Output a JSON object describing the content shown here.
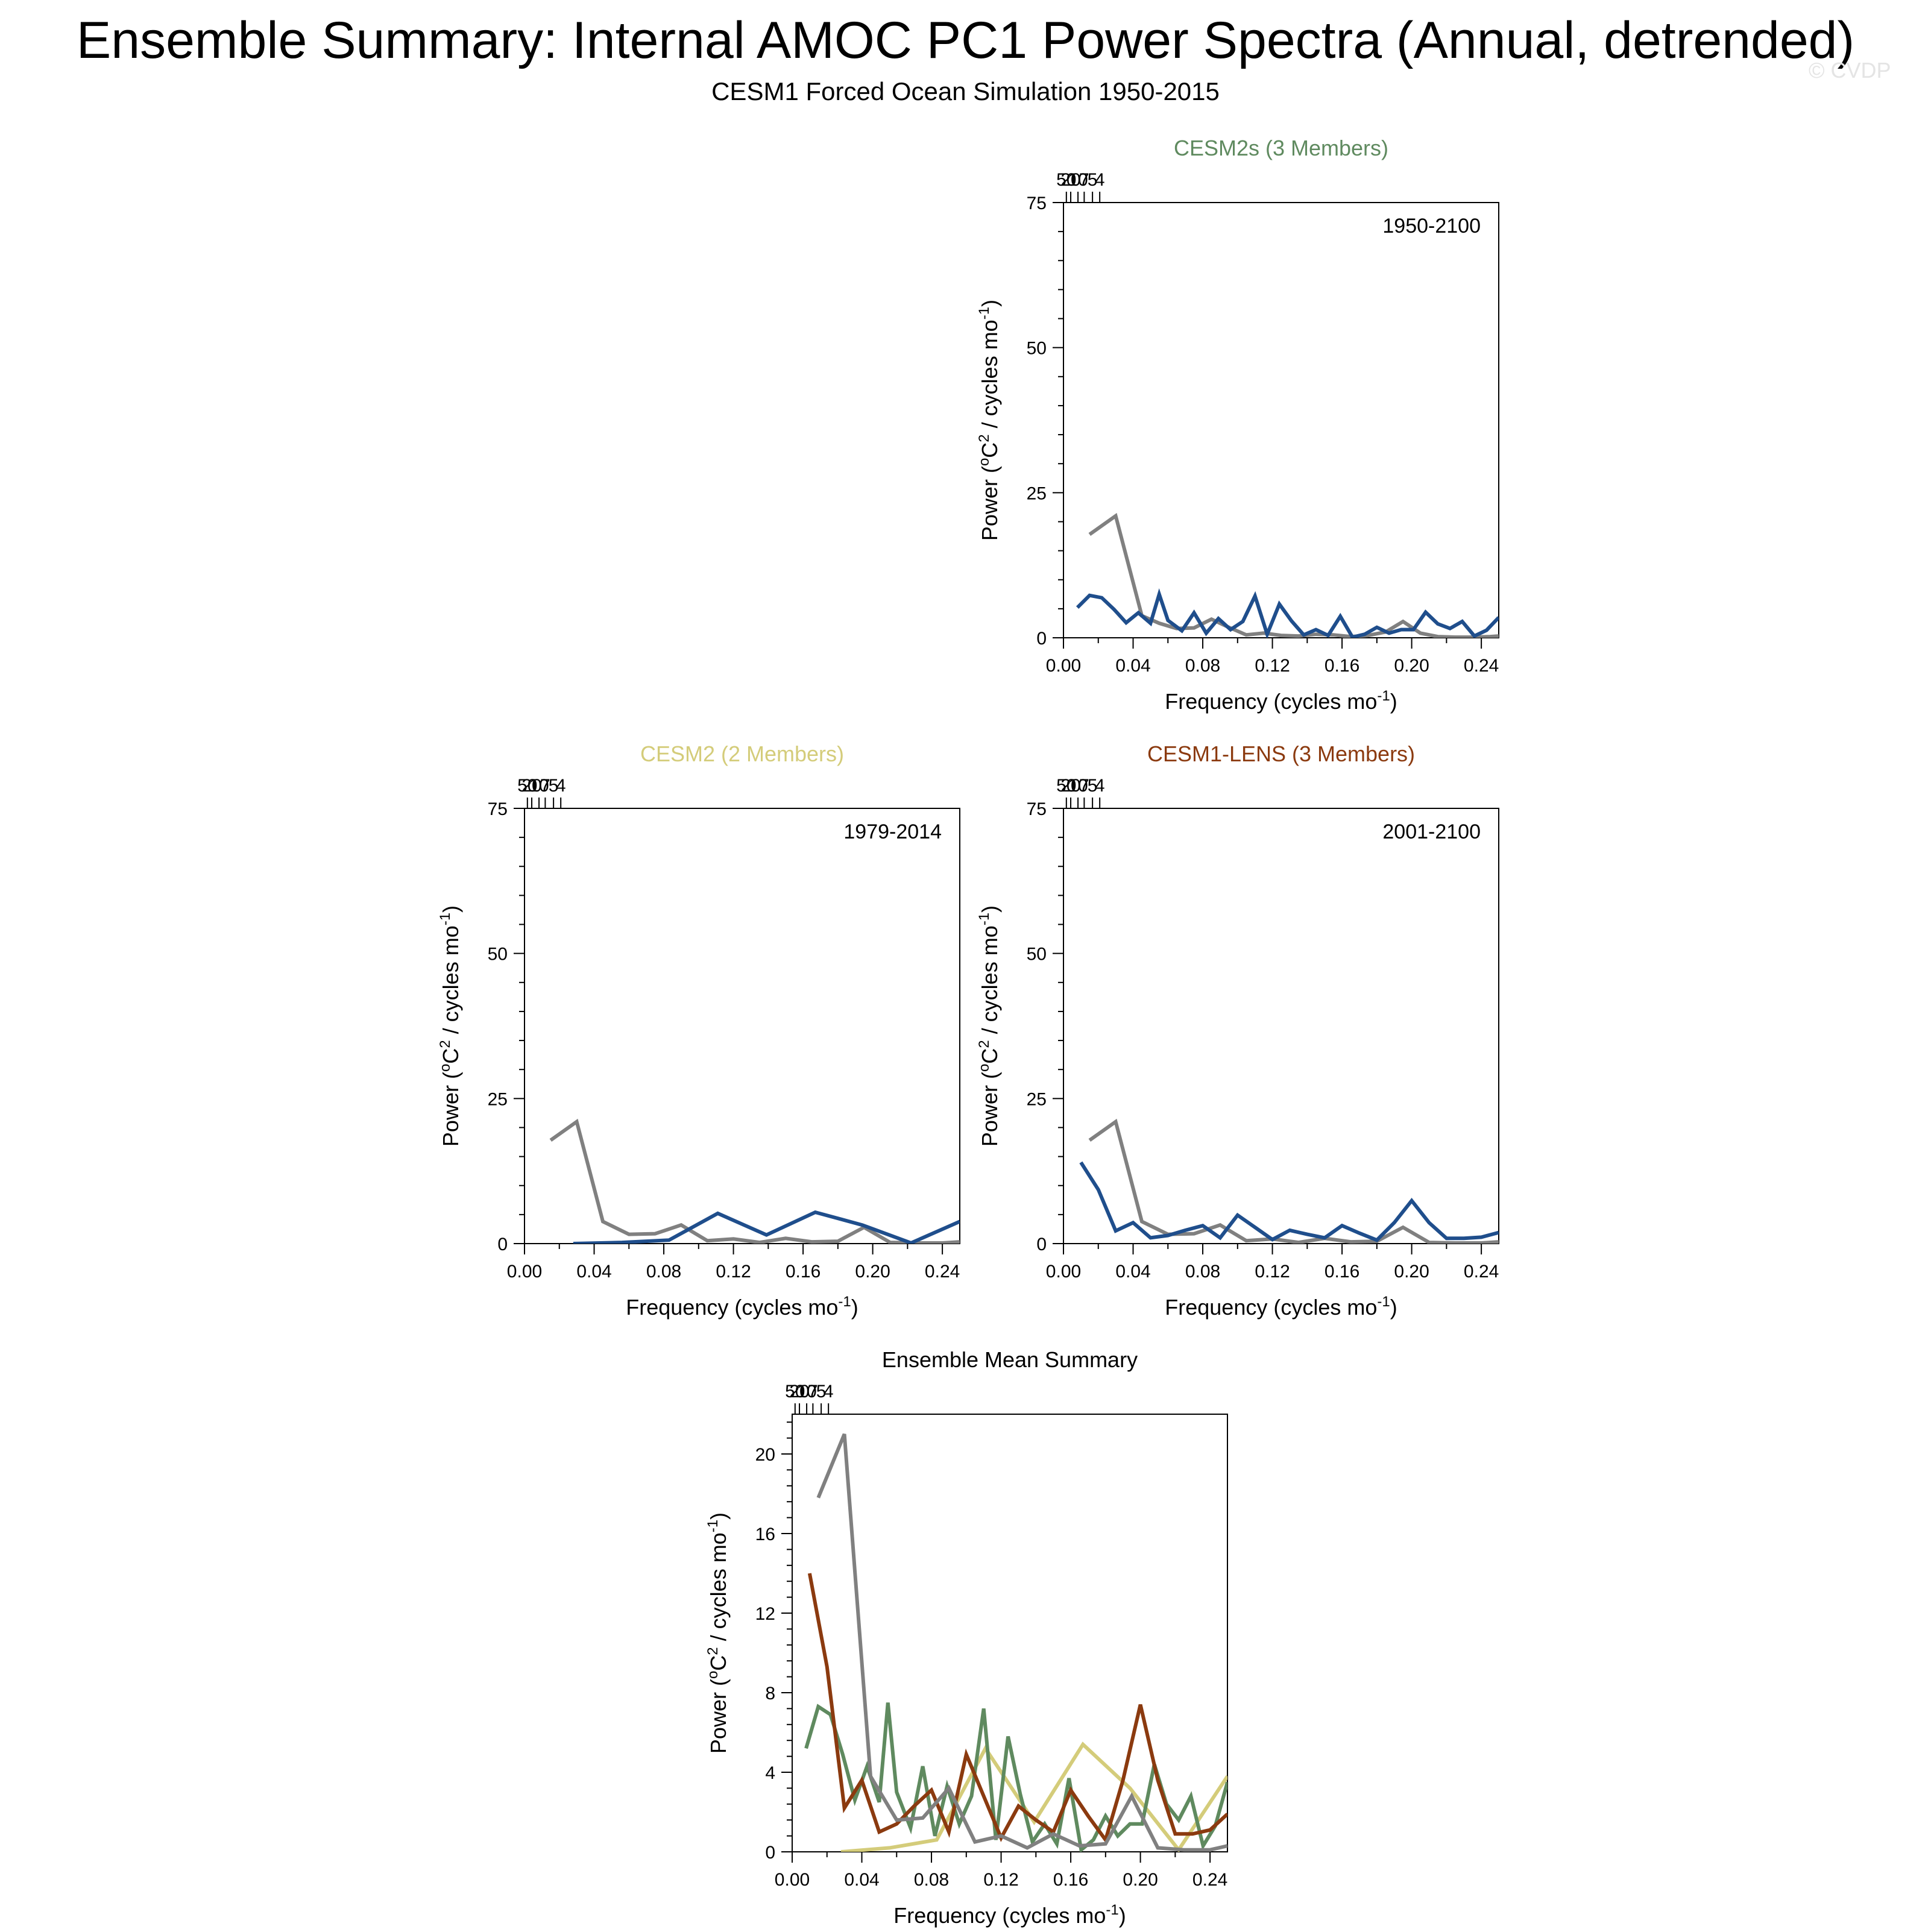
{
  "page": {
    "title": "Ensemble Summary: Internal AMOC PC1 Power Spectra (Annual, detrended)",
    "subtitle": "CESM1 Forced Ocean Simulation 1950-2015",
    "watermark": "© CVDP"
  },
  "colors": {
    "obs": "#808080",
    "ensemble_mean_line": "#1f4e8c",
    "CESM2s": "#5f8a5f",
    "CESM2": "#d4cc7a",
    "CESM1-LENS": "#8b3a0f",
    "axis": "#000000"
  },
  "axes_text": {
    "xlabel": "Frequency (cycles mo",
    "xlabel_sup": "-1",
    "xlabel_end": ")",
    "ylabel_a": "Power (",
    "ylabel_deg": "o",
    "ylabel_b": "C",
    "ylabel_sq": "2",
    "ylabel_c": " / cycles mo",
    "ylabel_sup": "-1",
    "ylabel_end": ")",
    "xticks": [
      "0.00",
      "0.04",
      "0.08",
      "0.12",
      "0.16",
      "0.20",
      "0.24"
    ],
    "period_ticks": [
      "50",
      "20",
      "10",
      "7",
      "5",
      "4"
    ]
  },
  "chart_data": [
    {
      "id": "cesm2s",
      "type": "line",
      "title": "CESM2s (3 Members)",
      "title_color": "CESM2s",
      "period_label": "1950-2100",
      "xlim": [
        0,
        0.25
      ],
      "ylim": [
        0,
        75
      ],
      "yticks": [
        "0",
        "25",
        "50",
        "75"
      ],
      "series": [
        {
          "color": "obs",
          "x": [
            0.015,
            0.03,
            0.045,
            0.055,
            0.065,
            0.075,
            0.085,
            0.095,
            0.105,
            0.115,
            0.125,
            0.135,
            0.145,
            0.155,
            0.165,
            0.175,
            0.185,
            0.195,
            0.205,
            0.215,
            0.225,
            0.235,
            0.245,
            0.25
          ],
          "y": [
            17.8,
            21.0,
            3.8,
            2.5,
            1.6,
            1.7,
            3.2,
            1.8,
            0.5,
            0.8,
            0.4,
            0.3,
            0.6,
            0.5,
            0.2,
            0.4,
            1.0,
            2.8,
            0.8,
            0.2,
            0.1,
            0.1,
            0.2,
            0.3
          ]
        },
        {
          "color": "ensemble_mean_line",
          "x": [
            0.008,
            0.015,
            0.022,
            0.029,
            0.036,
            0.043,
            0.05,
            0.055,
            0.06,
            0.068,
            0.075,
            0.082,
            0.089,
            0.096,
            0.103,
            0.11,
            0.117,
            0.124,
            0.131,
            0.138,
            0.145,
            0.152,
            0.159,
            0.166,
            0.173,
            0.18,
            0.187,
            0.194,
            0.201,
            0.208,
            0.215,
            0.222,
            0.229,
            0.236,
            0.243,
            0.25
          ],
          "y": [
            5.2,
            7.3,
            6.9,
            4.9,
            2.6,
            4.3,
            2.5,
            7.5,
            3.0,
            1.2,
            4.3,
            0.8,
            3.3,
            1.4,
            2.8,
            7.2,
            0.6,
            5.8,
            2.9,
            0.5,
            1.4,
            0.4,
            3.7,
            0.1,
            0.6,
            1.8,
            0.8,
            1.4,
            1.4,
            4.4,
            2.4,
            1.6,
            2.8,
            0.3,
            1.3,
            3.5
          ]
        }
      ]
    },
    {
      "id": "cesm2",
      "type": "line",
      "title": "CESM2 (2 Members)",
      "title_color": "CESM2",
      "period_label": "1979-2014",
      "xlim": [
        0,
        0.25
      ],
      "ylim": [
        0,
        75
      ],
      "yticks": [
        "0",
        "25",
        "50",
        "75"
      ],
      "series": [
        {
          "color": "obs",
          "x": [
            0.015,
            0.03,
            0.045,
            0.06,
            0.075,
            0.09,
            0.105,
            0.12,
            0.135,
            0.15,
            0.165,
            0.18,
            0.195,
            0.21,
            0.225,
            0.24,
            0.25
          ],
          "y": [
            17.8,
            21.0,
            3.8,
            1.6,
            1.7,
            3.2,
            0.5,
            0.8,
            0.2,
            0.9,
            0.3,
            0.4,
            2.8,
            0.2,
            0.1,
            0.1,
            0.3
          ]
        },
        {
          "color": "ensemble_mean_line",
          "x": [
            0.028,
            0.056,
            0.083,
            0.111,
            0.139,
            0.167,
            0.194,
            0.222,
            0.25
          ],
          "y": [
            0.0,
            0.2,
            0.6,
            5.2,
            1.5,
            5.4,
            3.2,
            0.1,
            3.8
          ]
        }
      ]
    },
    {
      "id": "cesm1-lens",
      "type": "line",
      "title": "CESM1-LENS (3 Members)",
      "title_color": "CESM1-LENS",
      "period_label": "2001-2100",
      "xlim": [
        0,
        0.25
      ],
      "ylim": [
        0,
        75
      ],
      "yticks": [
        "0",
        "25",
        "50",
        "75"
      ],
      "series": [
        {
          "color": "obs",
          "x": [
            0.015,
            0.03,
            0.045,
            0.06,
            0.075,
            0.09,
            0.105,
            0.12,
            0.135,
            0.15,
            0.165,
            0.18,
            0.195,
            0.21,
            0.225,
            0.24,
            0.25
          ],
          "y": [
            17.8,
            21.0,
            3.8,
            1.6,
            1.7,
            3.2,
            0.5,
            0.8,
            0.2,
            0.9,
            0.3,
            0.4,
            2.8,
            0.2,
            0.1,
            0.1,
            0.3
          ]
        },
        {
          "color": "ensemble_mean_line",
          "x": [
            0.01,
            0.02,
            0.03,
            0.04,
            0.05,
            0.06,
            0.07,
            0.08,
            0.09,
            0.1,
            0.11,
            0.12,
            0.13,
            0.14,
            0.15,
            0.16,
            0.17,
            0.18,
            0.19,
            0.2,
            0.21,
            0.22,
            0.23,
            0.24,
            0.25
          ],
          "y": [
            14.0,
            9.3,
            2.2,
            3.6,
            1.0,
            1.4,
            2.3,
            3.1,
            1.0,
            4.9,
            2.8,
            0.7,
            2.3,
            1.6,
            1.0,
            3.1,
            1.8,
            0.6,
            3.6,
            7.4,
            3.6,
            0.9,
            0.9,
            1.1,
            1.9
          ]
        }
      ]
    },
    {
      "id": "ensemble-mean",
      "type": "line",
      "title": "Ensemble Mean Summary",
      "title_color": "axis",
      "period_label": "",
      "xlim": [
        0,
        0.25
      ],
      "ylim": [
        0,
        22
      ],
      "yticks": [
        "0",
        "4",
        "8",
        "12",
        "16",
        "20"
      ],
      "series": [
        {
          "color": "CESM2",
          "x": [
            0.028,
            0.056,
            0.083,
            0.111,
            0.139,
            0.167,
            0.194,
            0.222,
            0.25
          ],
          "y": [
            0.0,
            0.2,
            0.6,
            5.2,
            1.5,
            5.4,
            3.2,
            0.1,
            3.8
          ]
        },
        {
          "color": "CESM2s",
          "x": [
            0.008,
            0.015,
            0.022,
            0.029,
            0.036,
            0.043,
            0.05,
            0.055,
            0.06,
            0.068,
            0.075,
            0.082,
            0.089,
            0.096,
            0.103,
            0.11,
            0.117,
            0.124,
            0.131,
            0.138,
            0.145,
            0.152,
            0.159,
            0.166,
            0.173,
            0.18,
            0.187,
            0.194,
            0.201,
            0.208,
            0.215,
            0.222,
            0.229,
            0.236,
            0.243,
            0.25
          ],
          "y": [
            5.2,
            7.3,
            6.9,
            4.9,
            2.6,
            4.3,
            2.5,
            7.5,
            3.0,
            1.2,
            4.3,
            0.8,
            3.3,
            1.4,
            2.8,
            7.2,
            0.6,
            5.8,
            2.9,
            0.5,
            1.4,
            0.4,
            3.7,
            0.1,
            0.6,
            1.8,
            0.8,
            1.4,
            1.4,
            4.4,
            2.4,
            1.6,
            2.8,
            0.3,
            1.3,
            3.5
          ]
        },
        {
          "color": "CESM1-LENS",
          "x": [
            0.01,
            0.02,
            0.03,
            0.04,
            0.05,
            0.06,
            0.07,
            0.08,
            0.09,
            0.1,
            0.11,
            0.12,
            0.13,
            0.14,
            0.15,
            0.16,
            0.17,
            0.18,
            0.19,
            0.2,
            0.21,
            0.22,
            0.23,
            0.24,
            0.25
          ],
          "y": [
            14.0,
            9.3,
            2.2,
            3.6,
            1.0,
            1.4,
            2.3,
            3.1,
            1.0,
            4.9,
            2.8,
            0.7,
            2.3,
            1.6,
            1.0,
            3.1,
            1.8,
            0.6,
            3.6,
            7.4,
            3.6,
            0.9,
            0.9,
            1.1,
            1.9
          ]
        },
        {
          "color": "obs",
          "x": [
            0.015,
            0.03,
            0.045,
            0.06,
            0.075,
            0.09,
            0.105,
            0.12,
            0.135,
            0.15,
            0.165,
            0.18,
            0.195,
            0.21,
            0.225,
            0.24,
            0.25
          ],
          "y": [
            17.8,
            21.0,
            3.8,
            1.6,
            1.7,
            3.2,
            0.5,
            0.8,
            0.2,
            0.9,
            0.3,
            0.4,
            2.8,
            0.2,
            0.1,
            0.1,
            0.3
          ]
        }
      ]
    }
  ]
}
